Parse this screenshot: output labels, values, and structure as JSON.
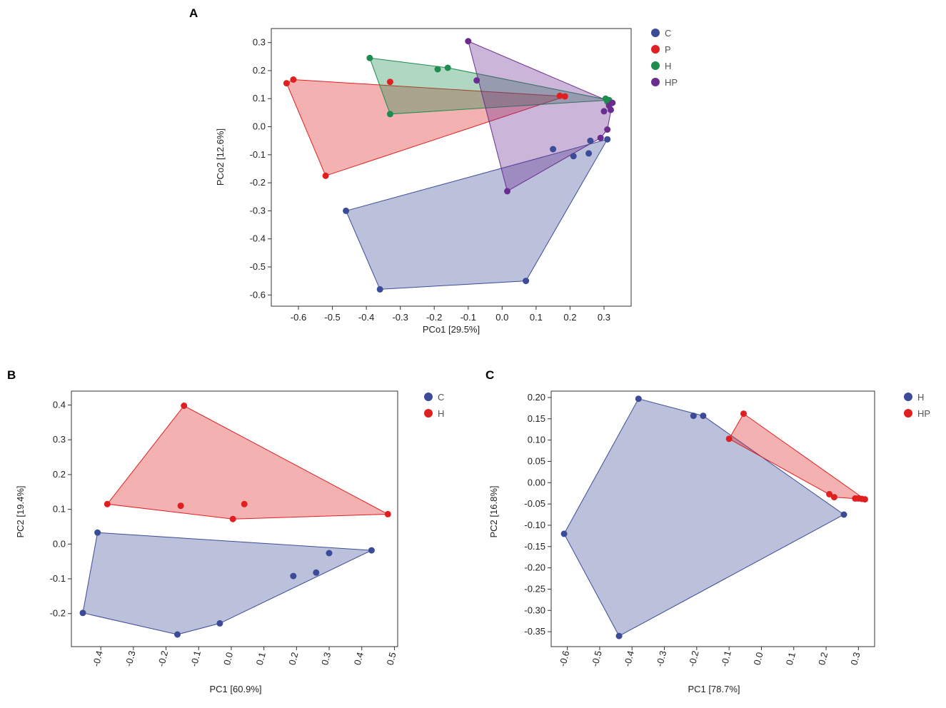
{
  "chart_data": [
    {
      "panel": "A",
      "type": "scatter",
      "xlabel": "PCo1 [29.5%]",
      "ylabel": "PCo2 [12.6%]",
      "xlim": [
        -0.68,
        0.38
      ],
      "ylim": [
        -0.64,
        0.35
      ],
      "xticks": [
        -0.6,
        -0.5,
        -0.4,
        -0.3,
        -0.2,
        -0.1,
        0,
        0.1,
        0.2,
        0.3
      ],
      "xtick_labels": [
        "-0.6",
        "-0.5",
        "-0.4",
        "-0.3",
        "-0.2",
        "-0.1",
        "0.0",
        "0.1",
        "0.2",
        "0.3"
      ],
      "yticks": [
        0.3,
        0.2,
        0.1,
        0,
        -0.1,
        -0.2,
        -0.3,
        -0.4,
        -0.5,
        -0.6
      ],
      "ytick_labels": [
        "0.3",
        "0.2",
        "0.1",
        "0.0",
        "-0.1",
        "-0.2",
        "-0.3",
        "-0.4",
        "-0.5",
        "-0.6"
      ],
      "rotate_x": false,
      "series": [
        {
          "name": "C",
          "color": "#3b4b98",
          "points": [
            [
              -0.46,
              -0.3
            ],
            [
              -0.36,
              -0.58
            ],
            [
              0.07,
              -0.55
            ],
            [
              0.15,
              -0.08
            ],
            [
              0.21,
              -0.105
            ],
            [
              0.255,
              -0.095
            ],
            [
              0.26,
              -0.05
            ],
            [
              0.31,
              -0.045
            ]
          ],
          "hull": [
            [
              -0.46,
              -0.3
            ],
            [
              -0.36,
              -0.58
            ],
            [
              0.07,
              -0.55
            ],
            [
              0.31,
              -0.045
            ]
          ]
        },
        {
          "name": "P",
          "color": "#e02020",
          "points": [
            [
              -0.635,
              0.155
            ],
            [
              -0.615,
              0.168
            ],
            [
              -0.52,
              -0.175
            ],
            [
              -0.33,
              0.16
            ],
            [
              0.17,
              0.11
            ],
            [
              0.185,
              0.108
            ]
          ],
          "hull": [
            [
              -0.635,
              0.155
            ],
            [
              -0.615,
              0.168
            ],
            [
              0.185,
              0.108
            ],
            [
              -0.52,
              -0.175
            ]
          ]
        },
        {
          "name": "H",
          "color": "#1e8c4e",
          "points": [
            [
              -0.39,
              0.245
            ],
            [
              -0.19,
              0.205
            ],
            [
              -0.16,
              0.21
            ],
            [
              -0.33,
              0.045
            ],
            [
              0.305,
              0.1
            ],
            [
              0.31,
              0.09
            ],
            [
              0.315,
              0.095
            ]
          ],
          "hull": [
            [
              -0.39,
              0.245
            ],
            [
              -0.16,
              0.21
            ],
            [
              0.315,
              0.095
            ],
            [
              -0.33,
              0.045
            ]
          ]
        },
        {
          "name": "HP",
          "color": "#6b2c8f",
          "points": [
            [
              -0.1,
              0.305
            ],
            [
              -0.075,
              0.165
            ],
            [
              0.015,
              -0.23
            ],
            [
              0.29,
              -0.04
            ],
            [
              0.3,
              0.055
            ],
            [
              0.315,
              0.075
            ],
            [
              0.325,
              0.085
            ],
            [
              0.32,
              0.06
            ],
            [
              0.31,
              -0.01
            ]
          ],
          "hull": [
            [
              -0.1,
              0.305
            ],
            [
              0.325,
              0.085
            ],
            [
              0.31,
              -0.01
            ],
            [
              0.29,
              -0.04
            ],
            [
              0.015,
              -0.23
            ]
          ]
        }
      ]
    },
    {
      "panel": "B",
      "type": "scatter",
      "xlabel": "PC1 [60.9%]",
      "ylabel": "PC2 [19.4%]",
      "xlim": [
        -0.49,
        0.51
      ],
      "ylim": [
        -0.295,
        0.44
      ],
      "xticks": [
        -0.4,
        -0.3,
        -0.2,
        -0.1,
        0,
        0.1,
        0.2,
        0.3,
        0.4,
        0.5
      ],
      "xtick_labels": [
        "-0.4",
        "-0.3",
        "-0.2",
        "-0.1",
        "0.0",
        "0.1",
        "0.2",
        "0.3",
        "0.4",
        "0.5"
      ],
      "yticks": [
        0.4,
        0.3,
        0.2,
        0.1,
        0,
        -0.1,
        -0.2
      ],
      "ytick_labels": [
        "0.4",
        "0.3",
        "0.2",
        "0.1",
        "0.0",
        "-0.1",
        "-0.2"
      ],
      "rotate_x": true,
      "series": [
        {
          "name": "C",
          "color": "#3b4b98",
          "points": [
            [
              -0.41,
              0.033
            ],
            [
              -0.455,
              -0.198
            ],
            [
              -0.165,
              -0.26
            ],
            [
              -0.035,
              -0.228
            ],
            [
              0.19,
              -0.092
            ],
            [
              0.26,
              -0.082
            ],
            [
              0.3,
              -0.026
            ],
            [
              0.43,
              -0.018
            ]
          ],
          "hull": [
            [
              -0.41,
              0.033
            ],
            [
              0.43,
              -0.018
            ],
            [
              -0.035,
              -0.228
            ],
            [
              -0.165,
              -0.26
            ],
            [
              -0.455,
              -0.198
            ]
          ]
        },
        {
          "name": "H",
          "color": "#e02020",
          "points": [
            [
              -0.38,
              0.115
            ],
            [
              -0.145,
              0.398
            ],
            [
              -0.155,
              0.11
            ],
            [
              0.005,
              0.072
            ],
            [
              0.04,
              0.115
            ],
            [
              0.48,
              0.086
            ]
          ],
          "hull": [
            [
              -0.38,
              0.115
            ],
            [
              -0.145,
              0.398
            ],
            [
              0.48,
              0.086
            ],
            [
              0.005,
              0.072
            ]
          ]
        }
      ]
    },
    {
      "panel": "C",
      "type": "scatter",
      "xlabel": "PC1 [78.7%]",
      "ylabel": "PC2 [16.8%]",
      "xlim": [
        -0.65,
        0.35
      ],
      "ylim": [
        -0.385,
        0.215
      ],
      "xticks": [
        -0.6,
        -0.5,
        -0.4,
        -0.3,
        -0.2,
        -0.1,
        0,
        0.1,
        0.2,
        0.3
      ],
      "xtick_labels": [
        "-0.6",
        "-0.5",
        "-0.4",
        "-0.3",
        "-0.2",
        "-0.1",
        "0.0",
        "0.1",
        "0.2",
        "0.3"
      ],
      "yticks": [
        0.2,
        0.15,
        0.1,
        0.05,
        0,
        -0.05,
        -0.1,
        -0.15,
        -0.2,
        -0.25,
        -0.3,
        -0.35
      ],
      "ytick_labels": [
        "0.20",
        "0.15",
        "0.10",
        "0.05",
        "0.00",
        "-0.05",
        "-0.10",
        "-0.15",
        "-0.20",
        "-0.25",
        "-0.30",
        "-0.35"
      ],
      "rotate_x": true,
      "series": [
        {
          "name": "H",
          "color": "#3b4b98",
          "points": [
            [
              -0.38,
              0.197
            ],
            [
              -0.21,
              0.157
            ],
            [
              -0.18,
              0.157
            ],
            [
              -0.61,
              -0.12
            ],
            [
              -0.44,
              -0.36
            ],
            [
              0.255,
              -0.075
            ]
          ],
          "hull": [
            [
              -0.38,
              0.197
            ],
            [
              -0.18,
              0.157
            ],
            [
              0.255,
              -0.075
            ],
            [
              -0.44,
              -0.36
            ],
            [
              -0.61,
              -0.12
            ]
          ]
        },
        {
          "name": "HP",
          "color": "#e02020",
          "points": [
            [
              -0.055,
              0.162
            ],
            [
              -0.1,
              0.103
            ],
            [
              0.21,
              -0.027
            ],
            [
              0.225,
              -0.034
            ],
            [
              0.29,
              -0.037
            ],
            [
              0.3,
              -0.037
            ],
            [
              0.31,
              -0.038
            ],
            [
              0.32,
              -0.039
            ]
          ],
          "hull": [
            [
              -0.055,
              0.162
            ],
            [
              0.32,
              -0.039
            ],
            [
              0.225,
              -0.034
            ],
            [
              -0.1,
              0.103
            ]
          ]
        }
      ]
    }
  ]
}
